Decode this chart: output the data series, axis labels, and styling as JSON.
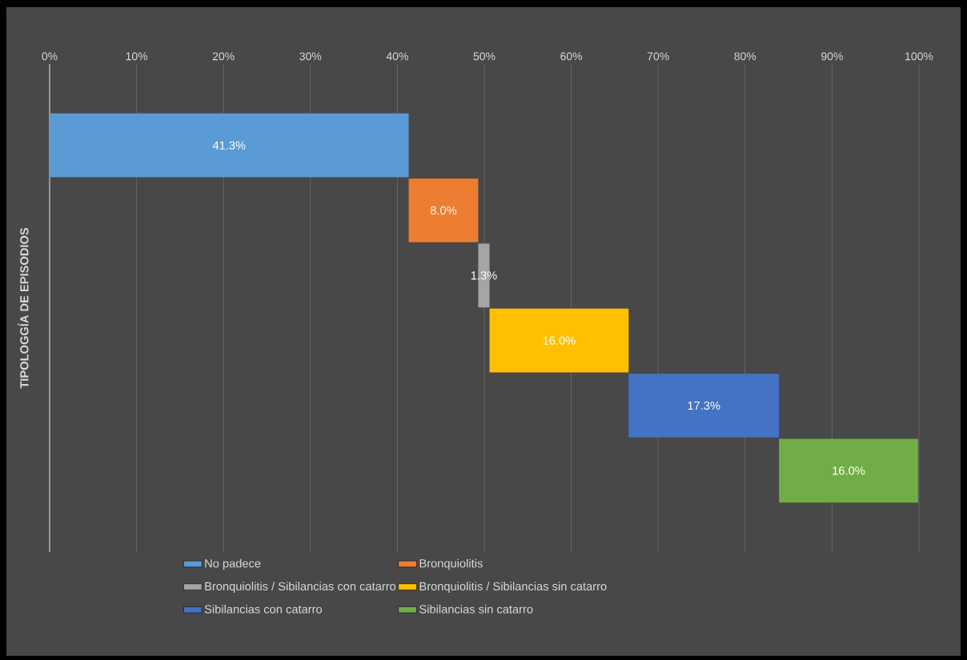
{
  "chart_data": {
    "type": "bar",
    "orientation": "horizontal",
    "ylabel": "TIPOLOGGÍA DE EPISODIOS",
    "categories": [
      null,
      null,
      null,
      null,
      null,
      null
    ],
    "series": [
      {
        "name": "No padece",
        "color": "#5b9bd5",
        "values": [
          41.3,
          null,
          null,
          null,
          null,
          null
        ],
        "base": [
          0,
          null,
          null,
          null,
          null,
          null
        ],
        "value_labels": [
          "41.3%",
          null,
          null,
          null,
          null,
          null
        ]
      },
      {
        "name": "Bronquiolitis",
        "color": "#ed7d31",
        "values": [
          null,
          8.0,
          null,
          null,
          null,
          null
        ],
        "base": [
          null,
          41.3,
          null,
          null,
          null,
          null
        ],
        "value_labels": [
          null,
          "8.0%",
          null,
          null,
          null,
          null
        ]
      },
      {
        "name": "Bronquiolitis / Sibilancias con catarro",
        "color": "#a5a5a5",
        "values": [
          null,
          null,
          1.3,
          null,
          null,
          null
        ],
        "base": [
          null,
          null,
          49.3,
          null,
          null,
          null
        ],
        "value_labels": [
          null,
          null,
          "1.3%",
          null,
          null,
          null
        ]
      },
      {
        "name": "Bronquiolitis / Sibilancias sin catarro",
        "color": "#ffc000",
        "values": [
          null,
          null,
          null,
          16.0,
          null,
          null
        ],
        "base": [
          null,
          null,
          null,
          50.6,
          null,
          null
        ],
        "value_labels": [
          null,
          null,
          null,
          "16.0%",
          null,
          null
        ]
      },
      {
        "name": "Sibilancias con catarro",
        "color": "#4472c4",
        "values": [
          null,
          null,
          null,
          null,
          17.3,
          null
        ],
        "base": [
          null,
          null,
          null,
          null,
          66.6,
          null
        ],
        "value_labels": [
          null,
          null,
          null,
          null,
          "17.3%",
          null
        ]
      },
      {
        "name": "Sibilancias sin catarro",
        "color": "#70ad47",
        "values": [
          null,
          null,
          null,
          null,
          null,
          16.0
        ],
        "base": [
          null,
          null,
          null,
          null,
          null,
          83.9
        ],
        "value_labels": [
          null,
          null,
          null,
          null,
          null,
          "16.0%"
        ]
      }
    ],
    "xlim": [
      0,
      100
    ],
    "xticks": [
      {
        "value": 0,
        "label": "0%"
      },
      {
        "value": 10,
        "label": "10%"
      },
      {
        "value": 20,
        "label": "20%"
      },
      {
        "value": 30,
        "label": "30%"
      },
      {
        "value": 40,
        "label": "40%"
      },
      {
        "value": 50,
        "label": "50%"
      },
      {
        "value": 60,
        "label": "60%"
      },
      {
        "value": 70,
        "label": "70%"
      },
      {
        "value": 80,
        "label": "80%"
      },
      {
        "value": 90,
        "label": "90%"
      },
      {
        "value": 100,
        "label": "100%"
      }
    ],
    "grid": "x",
    "legend": "bottom"
  }
}
